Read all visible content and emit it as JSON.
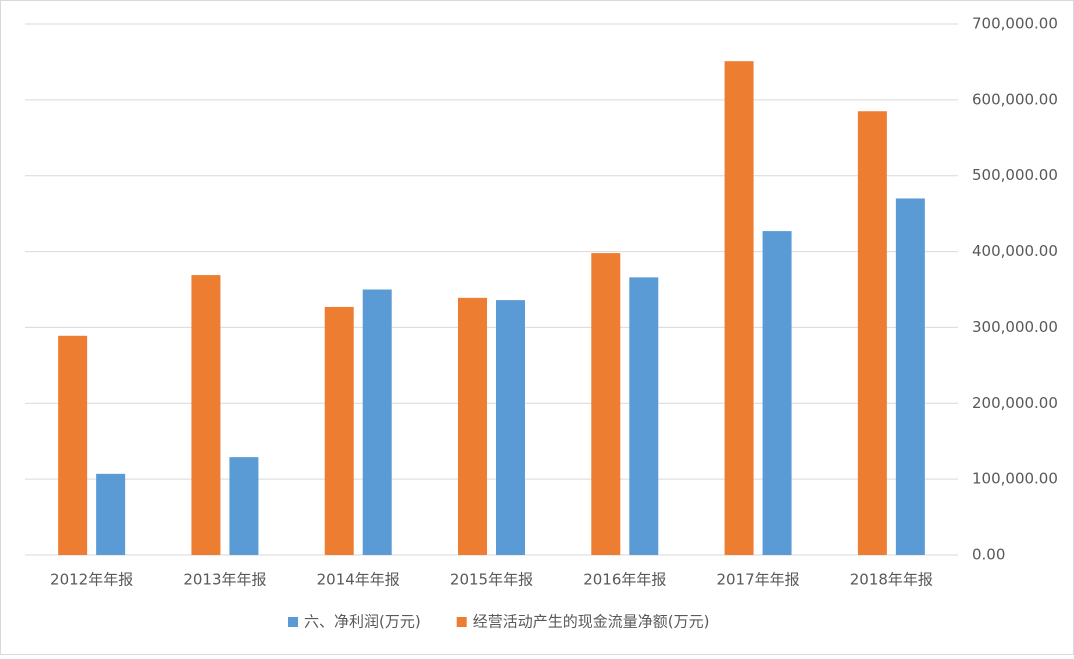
{
  "chart_data": {
    "type": "bar",
    "categories": [
      "2012年年报",
      "2013年年报",
      "2014年年报",
      "2015年年报",
      "2016年年报",
      "2017年年报",
      "2018年年报"
    ],
    "series": [
      {
        "name": "六、净利润(万元)",
        "color": "#5b9bd5",
        "values": [
          107000,
          129000,
          350000,
          336000,
          366000,
          427000,
          470000
        ]
      },
      {
        "name": "经营活动产生的现金流量净额(万元)",
        "color": "#ed7d31",
        "values": [
          289000,
          369000,
          327000,
          339000,
          398000,
          651000,
          585000
        ]
      }
    ],
    "ylim": [
      0,
      700000
    ],
    "yticks": [
      {
        "value": 0,
        "label": "0.00"
      },
      {
        "value": 100000,
        "label": "100,000.00"
      },
      {
        "value": 200000,
        "label": "200,000.00"
      },
      {
        "value": 300000,
        "label": "300,000.00"
      },
      {
        "value": 400000,
        "label": "400,000.00"
      },
      {
        "value": 500000,
        "label": "500,000.00"
      },
      {
        "value": 600000,
        "label": "600,000.00"
      },
      {
        "value": 700000,
        "label": "700,000.00"
      }
    ],
    "grid": true,
    "axis_side": "right",
    "legend": "bottom"
  }
}
